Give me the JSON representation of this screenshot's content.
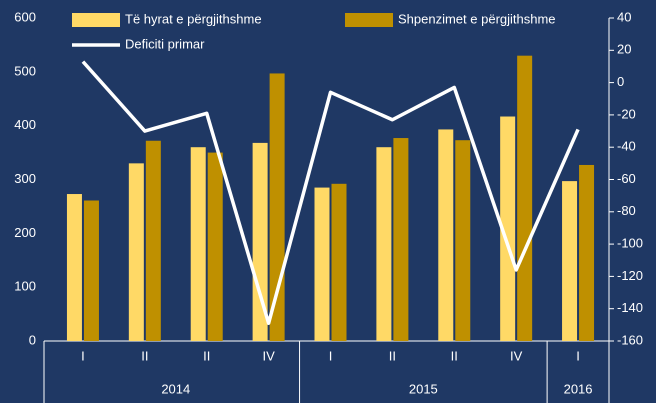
{
  "chart_data": {
    "type": "bar_line",
    "categories": [
      "I",
      "II",
      "II",
      "IV",
      "I",
      "II",
      "II",
      "IV",
      "I"
    ],
    "category_groups": [
      "2014",
      "2014",
      "2014",
      "2014",
      "2015",
      "2015",
      "2015",
      "2015",
      "2016"
    ],
    "series": [
      {
        "name": "Të hyrat  e përgjithshme",
        "type": "bar",
        "color": "#ffd966",
        "values": [
          273,
          330,
          360,
          368,
          285,
          360,
          393,
          417,
          297
        ]
      },
      {
        "name": "Shpenzimet e përgjithshme",
        "type": "bar",
        "color": "#bf9000",
        "values": [
          261,
          372,
          350,
          497,
          292,
          377,
          373,
          530,
          327
        ]
      },
      {
        "name": "Deficiti primar",
        "type": "line",
        "axis": "y2",
        "color": "#ffffff",
        "values": [
          13,
          -30,
          -19,
          -149,
          -6,
          -23,
          -3,
          -116,
          -29
        ]
      }
    ],
    "ylim": [
      0,
      600
    ],
    "yticks": [
      0,
      100,
      200,
      300,
      400,
      500,
      600
    ],
    "y2lim": [
      -160,
      40
    ],
    "y2ticks": [
      -160,
      -140,
      -120,
      -100,
      -80,
      -60,
      -40,
      -20,
      0,
      20,
      40
    ]
  }
}
